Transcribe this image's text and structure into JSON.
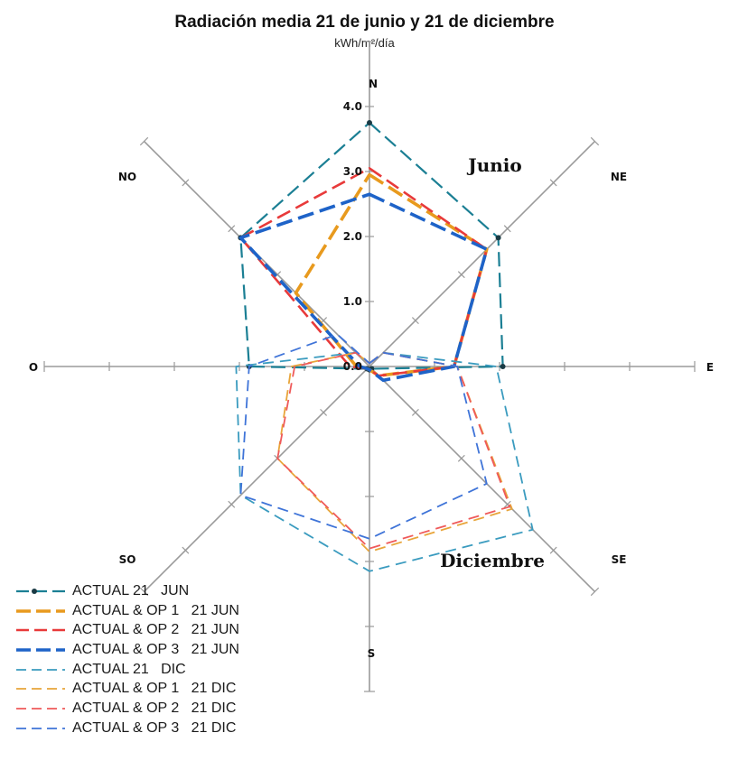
{
  "chart_data": {
    "type": "radar",
    "title": "Radiación media 21 de junio y 21 de diciembre",
    "subtitle": "kWh/m²/día",
    "directions": [
      "N",
      "NE",
      "E",
      "SE",
      "S",
      "SO",
      "O",
      "NO"
    ],
    "radial_ticks": [
      "0.0",
      "1.0",
      "2.0",
      "3.0",
      "4.0"
    ],
    "rlim": [
      0,
      4
    ],
    "annotations": [
      "Junio",
      "Diciembre"
    ],
    "legend_position": "bottom-left",
    "series": [
      {
        "name": "ACTUAL 21   JUN",
        "color": "#1b7f94",
        "style": "solid-markers",
        "values": [
          3.75,
          2.8,
          2.05,
          0.05,
          0.05,
          0.05,
          1.85,
          2.8
        ]
      },
      {
        "name": "ACTUAL & OP 1   21 JUN",
        "color": "#e89a1e",
        "style": "bold-dash",
        "values": [
          2.95,
          2.55,
          1.3,
          0.2,
          0.05,
          0.05,
          0.2,
          1.6
        ]
      },
      {
        "name": "ACTUAL & OP 2   21 JUN",
        "color": "#e83a3a",
        "style": "dash",
        "values": [
          3.05,
          2.55,
          1.3,
          0.2,
          0.05,
          0.05,
          0.3,
          2.8
        ]
      },
      {
        "name": "ACTUAL & OP 3   21 JUN",
        "color": "#1e63c8",
        "style": "bold-dash",
        "values": [
          2.65,
          2.55,
          1.3,
          0.3,
          0.05,
          0.05,
          0.15,
          2.8
        ]
      },
      {
        "name": "ACTUAL 21   DIC",
        "color": "#3a9bbf",
        "style": "thin-dash",
        "values": [
          0.05,
          0.3,
          1.95,
          3.55,
          3.15,
          2.8,
          2.05,
          0.3
        ]
      },
      {
        "name": "ACTUAL & OP 1   21 DIC",
        "color": "#e8a53a",
        "style": "thin-dash",
        "values": [
          0.05,
          0.3,
          1.35,
          3.1,
          2.85,
          2.0,
          1.2,
          0.3
        ]
      },
      {
        "name": "ACTUAL & OP 2   21 DIC",
        "color": "#ef5a5a",
        "style": "thin-dash",
        "values": [
          0.05,
          0.3,
          1.35,
          3.05,
          2.8,
          2.0,
          1.15,
          0.3
        ]
      },
      {
        "name": "ACTUAL & OP 3   21 DIC",
        "color": "#3f74d8",
        "style": "thin-dash",
        "values": [
          0.05,
          0.3,
          1.35,
          2.55,
          2.65,
          2.8,
          1.85,
          0.7
        ]
      }
    ]
  }
}
